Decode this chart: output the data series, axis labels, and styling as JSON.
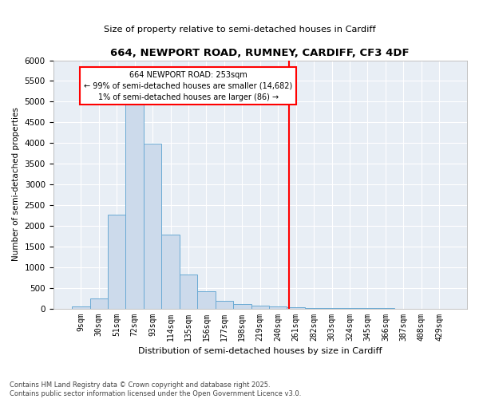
{
  "title_line1": "664, NEWPORT ROAD, RUMNEY, CARDIFF, CF3 4DF",
  "title_line2": "Size of property relative to semi-detached houses in Cardiff",
  "xlabel": "Distribution of semi-detached houses by size in Cardiff",
  "ylabel": "Number of semi-detached properties",
  "footer_line1": "Contains HM Land Registry data © Crown copyright and database right 2025.",
  "footer_line2": "Contains public sector information licensed under the Open Government Licence v3.0.",
  "bar_labels": [
    "9sqm",
    "30sqm",
    "51sqm",
    "72sqm",
    "93sqm",
    "114sqm",
    "135sqm",
    "156sqm",
    "177sqm",
    "198sqm",
    "219sqm",
    "240sqm",
    "261sqm",
    "282sqm",
    "303sqm",
    "324sqm",
    "345sqm",
    "366sqm",
    "387sqm",
    "408sqm",
    "429sqm"
  ],
  "bar_values": [
    50,
    250,
    2270,
    4940,
    3980,
    1780,
    830,
    415,
    180,
    105,
    70,
    55,
    30,
    10,
    5,
    5,
    2,
    2,
    1,
    1,
    0
  ],
  "bar_color": "#ccdaeb",
  "bar_edgecolor": "#6aaad4",
  "fig_background": "#ffffff",
  "axes_background": "#e8eef5",
  "grid_color": "#ffffff",
  "vline_color": "red",
  "vline_pos": 11.62,
  "annotation_text": "664 NEWPORT ROAD: 253sqm\n← 99% of semi-detached houses are smaller (14,682)\n1% of semi-detached houses are larger (86) →",
  "annotation_box_color": "red",
  "ylim": [
    0,
    6000
  ],
  "yticks": [
    0,
    500,
    1000,
    1500,
    2000,
    2500,
    3000,
    3500,
    4000,
    4500,
    5000,
    5500,
    6000
  ]
}
